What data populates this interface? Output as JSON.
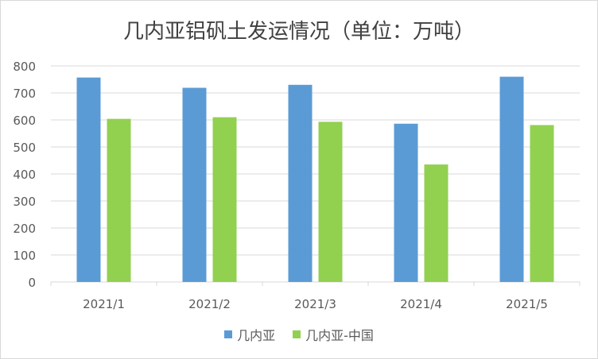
{
  "chart_data": {
    "type": "bar",
    "title": "几内亚铝矾土发运情况（单位：万吨）",
    "categories": [
      "2021/1",
      "2021/2",
      "2021/3",
      "2021/4",
      "2021/5"
    ],
    "series": [
      {
        "name": "几内亚",
        "values": [
          757,
          719,
          730,
          586,
          760
        ],
        "color": "#5b9bd5"
      },
      {
        "name": "几内亚-中国",
        "values": [
          604,
          610,
          593,
          435,
          581
        ],
        "color": "#92d050"
      }
    ],
    "ylim": [
      0,
      800
    ],
    "yticks": [
      0,
      100,
      200,
      300,
      400,
      500,
      600,
      700,
      800
    ],
    "grid": true,
    "legend": "bottom"
  }
}
